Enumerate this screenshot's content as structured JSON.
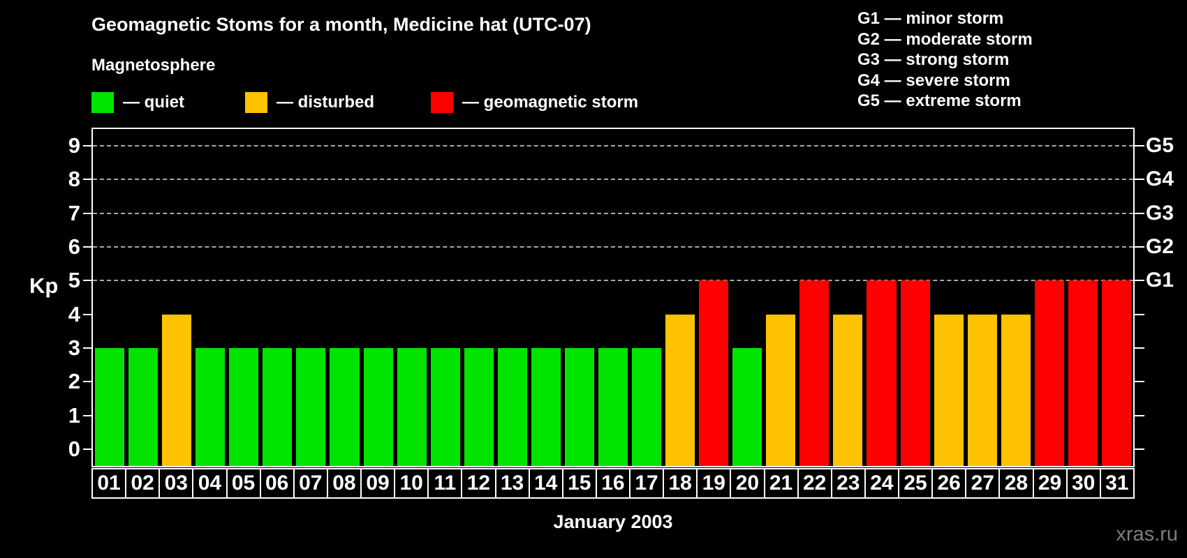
{
  "header": {
    "title": "Geomagnetic Stoms for a month, Medicine hat (UTC-07)"
  },
  "legend": {
    "heading": "Magnetosphere",
    "items": [
      {
        "label": "— quiet",
        "level": "quiet"
      },
      {
        "label": "— disturbed",
        "level": "disturbed"
      },
      {
        "label": "— geomagnetic storm",
        "level": "storm"
      }
    ]
  },
  "g_legend": {
    "lines": [
      "G1 — minor storm",
      "G2 — moderate storm",
      "G3 — strong storm",
      "G4 — severe storm",
      "G5 — extreme storm"
    ]
  },
  "watermark": "xras.ru",
  "chart_data": {
    "type": "bar",
    "title": "Geomagnetic Stoms for a month, Medicine hat (UTC-07)",
    "xlabel": "January 2003",
    "ylabel": "Kp",
    "ylim": [
      0,
      9
    ],
    "y_ticks": [
      0,
      1,
      2,
      3,
      4,
      5,
      6,
      7,
      8,
      9
    ],
    "grid_levels": [
      5,
      6,
      7,
      8,
      9
    ],
    "grid_style": "dashed",
    "legend_position": "top-left",
    "categories": [
      "01",
      "02",
      "03",
      "04",
      "05",
      "06",
      "07",
      "08",
      "09",
      "10",
      "11",
      "12",
      "13",
      "14",
      "15",
      "16",
      "17",
      "18",
      "19",
      "20",
      "21",
      "22",
      "23",
      "24",
      "25",
      "26",
      "27",
      "28",
      "29",
      "30",
      "31"
    ],
    "values": [
      3,
      3,
      4,
      3,
      3,
      3,
      3,
      3,
      3,
      3,
      3,
      3,
      3,
      3,
      3,
      3,
      3,
      4,
      5,
      3,
      4,
      5,
      4,
      5,
      5,
      4,
      4,
      4,
      5,
      5,
      5
    ],
    "levels": [
      "quiet",
      "quiet",
      "disturbed",
      "quiet",
      "quiet",
      "quiet",
      "quiet",
      "quiet",
      "quiet",
      "quiet",
      "quiet",
      "quiet",
      "quiet",
      "quiet",
      "quiet",
      "quiet",
      "quiet",
      "disturbed",
      "storm",
      "quiet",
      "disturbed",
      "storm",
      "disturbed",
      "storm",
      "storm",
      "disturbed",
      "disturbed",
      "disturbed",
      "storm",
      "storm",
      "storm"
    ],
    "right_axis": [
      {
        "kp": 5,
        "label": "G1"
      },
      {
        "kp": 6,
        "label": "G2"
      },
      {
        "kp": 7,
        "label": "G3"
      },
      {
        "kp": 8,
        "label": "G4"
      },
      {
        "kp": 9,
        "label": "G5"
      }
    ],
    "palette": {
      "quiet": "#00E400",
      "disturbed": "#FFC200",
      "storm": "#FF0000"
    },
    "background": "#000000"
  }
}
